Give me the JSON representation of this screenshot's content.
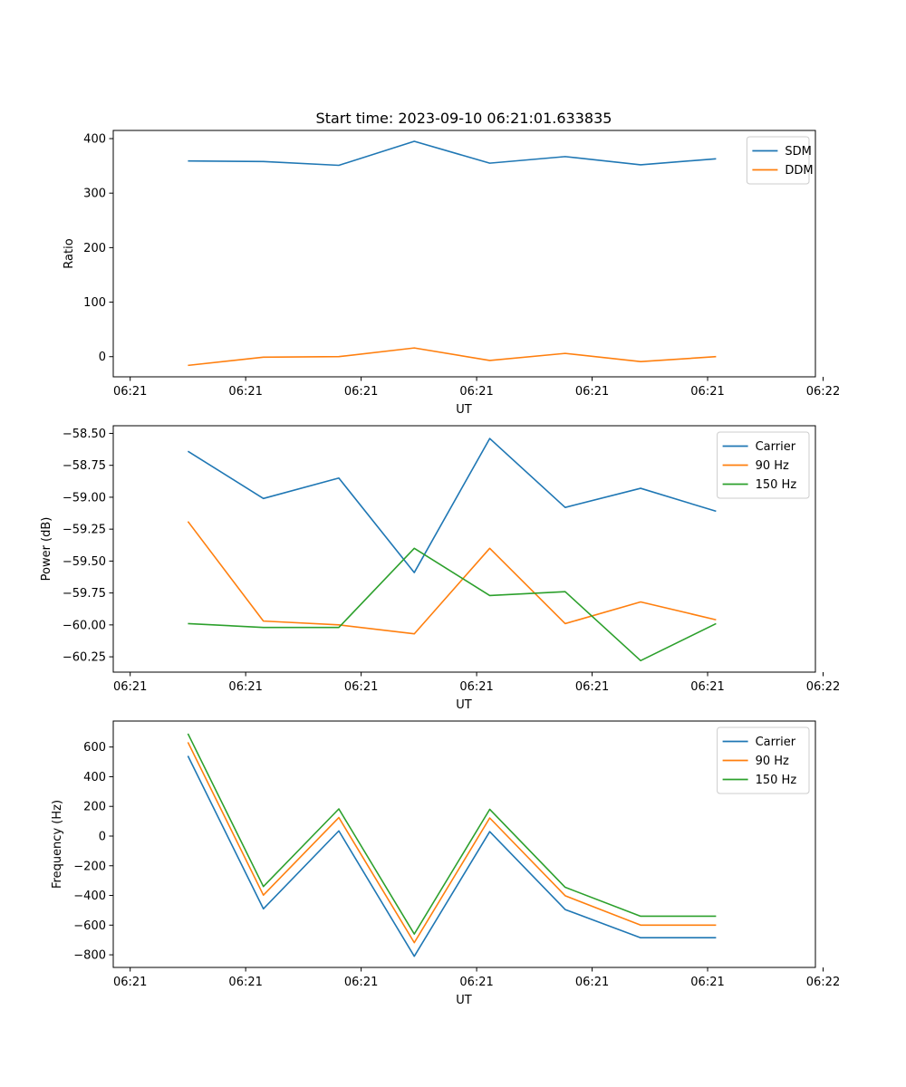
{
  "chart_data": [
    {
      "type": "line",
      "title": "Start time: 2023-09-10 06:21:01.633835",
      "xlabel": "UT",
      "ylabel": "Ratio",
      "xlim": [
        -0.52,
        8.6
      ],
      "ylim": [
        -37,
        415
      ],
      "x_tick_positions": [
        -0.3,
        1.2,
        2.7,
        4.2,
        5.7,
        7.2,
        8.7
      ],
      "x_tick_labels": [
        "06:21",
        "06:21",
        "06:21",
        "06:21",
        "06:21",
        "06:21",
        "06:22"
      ],
      "y_ticks": [
        0,
        100,
        200,
        300,
        400
      ],
      "y_tick_labels": [
        "0",
        "100",
        "200",
        "300",
        "400"
      ],
      "x": [
        0.45,
        1.43,
        2.41,
        3.39,
        4.37,
        5.35,
        6.33,
        7.31
      ],
      "legend_position": "top-right",
      "series": [
        {
          "name": "SDM",
          "color": "#1f77b4",
          "values": [
            359,
            358,
            351,
            395,
            355,
            367,
            352,
            363
          ]
        },
        {
          "name": "DDM",
          "color": "#ff7f0e",
          "values": [
            -16,
            -1,
            0,
            16,
            -7,
            6,
            -9,
            0
          ]
        }
      ]
    },
    {
      "type": "line",
      "title": "",
      "xlabel": "UT",
      "ylabel": "Power (dB)",
      "xlim": [
        -0.52,
        8.6
      ],
      "ylim": [
        -60.37,
        -58.44
      ],
      "x_tick_positions": [
        -0.3,
        1.2,
        2.7,
        4.2,
        5.7,
        7.2,
        8.7
      ],
      "x_tick_labels": [
        "06:21",
        "06:21",
        "06:21",
        "06:21",
        "06:21",
        "06:21",
        "06:22"
      ],
      "y_ticks": [
        -58.5,
        -58.75,
        -59.0,
        -59.25,
        -59.5,
        -59.75,
        -60.0,
        -60.25
      ],
      "y_tick_labels": [
        "−58.50",
        "−58.75",
        "−59.00",
        "−59.25",
        "−59.50",
        "−59.75",
        "−60.00",
        "−60.25"
      ],
      "x": [
        0.45,
        1.43,
        2.41,
        3.39,
        4.37,
        5.35,
        6.33,
        7.31
      ],
      "legend_position": "top-right",
      "series": [
        {
          "name": "Carrier",
          "color": "#1f77b4",
          "values": [
            -58.64,
            -59.01,
            -58.85,
            -59.59,
            -58.54,
            -59.08,
            -58.93,
            -59.11
          ]
        },
        {
          "name": "90 Hz",
          "color": "#ff7f0e",
          "values": [
            -59.19,
            -59.97,
            -60.0,
            -60.07,
            -59.4,
            -59.99,
            -59.82,
            -59.96
          ]
        },
        {
          "name": "150 Hz",
          "color": "#2ca02c",
          "values": [
            -59.99,
            -60.02,
            -60.02,
            -59.4,
            -59.77,
            -59.74,
            -60.28,
            -59.99
          ]
        }
      ]
    },
    {
      "type": "line",
      "title": "",
      "xlabel": "UT",
      "ylabel": "Frequency (Hz)",
      "xlim": [
        -0.52,
        8.6
      ],
      "ylim": [
        -885,
        775
      ],
      "x_tick_positions": [
        -0.3,
        1.2,
        2.7,
        4.2,
        5.7,
        7.2,
        8.7
      ],
      "x_tick_labels": [
        "06:21",
        "06:21",
        "06:21",
        "06:21",
        "06:21",
        "06:21",
        "06:22"
      ],
      "y_ticks": [
        600,
        400,
        200,
        0,
        -200,
        -400,
        -600,
        -800
      ],
      "y_tick_labels": [
        "600",
        "400",
        "200",
        "0",
        "−200",
        "−400",
        "−600",
        "−800"
      ],
      "x": [
        0.45,
        1.43,
        2.41,
        3.39,
        4.37,
        5.35,
        6.33,
        7.31
      ],
      "legend_position": "top-right",
      "series": [
        {
          "name": "Carrier",
          "color": "#1f77b4",
          "values": [
            540,
            -490,
            35,
            -810,
            30,
            -495,
            -685,
            -685
          ]
        },
        {
          "name": "90 Hz",
          "color": "#ff7f0e",
          "values": [
            632,
            -398,
            125,
            -718,
            122,
            -402,
            -600,
            -600
          ]
        },
        {
          "name": "150 Hz",
          "color": "#2ca02c",
          "values": [
            690,
            -340,
            183,
            -660,
            180,
            -345,
            -540,
            -540
          ]
        }
      ]
    }
  ]
}
